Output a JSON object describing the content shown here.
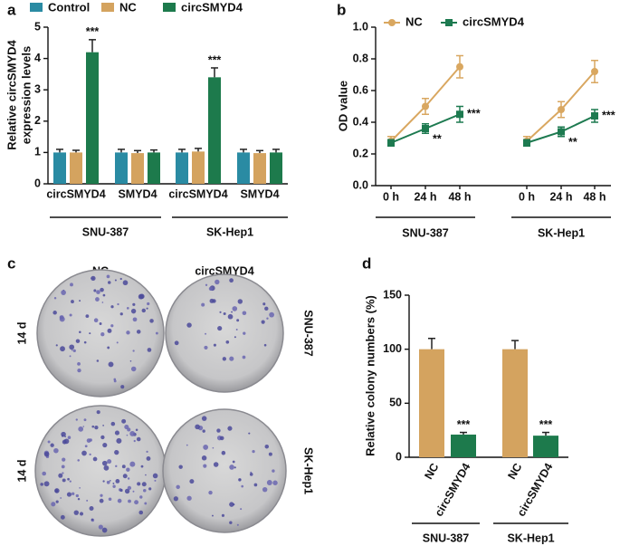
{
  "panel_labels": [
    "a",
    "b",
    "c",
    "d"
  ],
  "chart_data": [
    {
      "type": "bar",
      "ylabel": [
        "Relative circSMYD4",
        "expression levels"
      ],
      "categories": [
        "circSMYD4",
        "SMYD4",
        "circSMYD4",
        "SMYD4"
      ],
      "groups": [
        "SNU-387",
        "SK-Hep1"
      ],
      "series": [
        {
          "name": "Control",
          "color": "#2a8ba3",
          "values": [
            1,
            1,
            1,
            1
          ],
          "errors": [
            0.1,
            0.1,
            0.1,
            0.1
          ]
        },
        {
          "name": "NC",
          "color": "#d4a35f",
          "values": [
            1,
            0.98,
            1.03,
            0.98
          ],
          "errors": [
            0.07,
            0.08,
            0.1,
            0.08
          ]
        },
        {
          "name": "circSMYD4",
          "color": "#1d7a4c",
          "values": [
            4.2,
            1,
            3.4,
            1
          ],
          "errors": [
            0.4,
            0.08,
            0.3,
            0.1
          ],
          "significance": [
            "***",
            null,
            "***",
            null
          ]
        }
      ],
      "ylim": [
        0,
        5
      ],
      "yticks": [
        0,
        1,
        2,
        3,
        4,
        5
      ]
    },
    {
      "type": "line",
      "ylabel": "OD value",
      "categories": [
        "0 h",
        "24 h",
        "48 h",
        "0 h",
        "24 h",
        "48 h"
      ],
      "groups": [
        "SNU-387",
        "SK-Hep1"
      ],
      "series": [
        {
          "name": "NC",
          "color": "#d9a760",
          "marker": "circle",
          "values": [
            0.28,
            0.5,
            0.75,
            0.28,
            0.48,
            0.72
          ],
          "errors": [
            0.03,
            0.05,
            0.07,
            0.03,
            0.05,
            0.07
          ]
        },
        {
          "name": "circSMYD4",
          "color": "#1d7a50",
          "marker": "square",
          "values": [
            0.27,
            0.36,
            0.45,
            0.27,
            0.34,
            0.44
          ],
          "errors": [
            0.02,
            0.03,
            0.05,
            0.02,
            0.03,
            0.04
          ],
          "significance": [
            null,
            "**",
            "***",
            null,
            "**",
            "***"
          ]
        }
      ],
      "ylim": [
        0,
        1
      ],
      "yticks": [
        {
          "value": 0,
          "label": "0.0"
        },
        {
          "value": 0.2,
          "label": "0.2"
        },
        {
          "value": 0.4,
          "label": "0.4"
        },
        {
          "value": 0.6,
          "label": "0.6"
        },
        {
          "value": 0.8,
          "label": "0.8"
        },
        {
          "value": 1,
          "label": "1.0"
        }
      ]
    },
    {
      "type": "bar",
      "ylabel": "Relative colony numbers (%)",
      "categories": [
        "NC",
        "circSMYD4",
        "NC",
        "circSMYD4"
      ],
      "groups": [
        "SNU-387",
        "SK-Hep1"
      ],
      "values": [
        100,
        21,
        100,
        20
      ],
      "errors": [
        10,
        2,
        8,
        3
      ],
      "colors": [
        "#d4a35f",
        "#1d7a4c",
        "#d4a35f",
        "#1d7a4c"
      ],
      "significance": [
        null,
        "***",
        null,
        "***"
      ],
      "ylim": [
        0,
        150
      ],
      "yticks": [
        0,
        50,
        100,
        150
      ]
    }
  ],
  "colony_images": {
    "columns": [
      "NC",
      "circSMYD4"
    ],
    "rows": [
      "SNU-387",
      "SK-Hep1"
    ],
    "time_labels": [
      "14 d",
      "14 d"
    ]
  }
}
